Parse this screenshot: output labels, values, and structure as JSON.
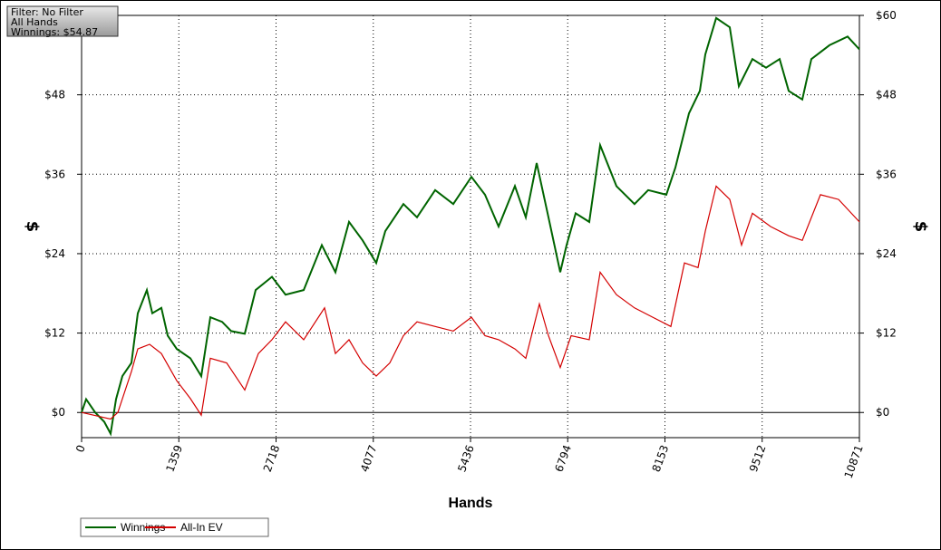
{
  "filter_box": {
    "lines": [
      "Filter: No Filter",
      "All Hands",
      "Winnings: $54.87"
    ]
  },
  "chart_data": {
    "type": "line",
    "x_label": "Hands",
    "y_label": "$",
    "y2_label": "$",
    "xlim": [
      0,
      10871
    ],
    "xticks": [
      0,
      1359,
      2718,
      4077,
      5436,
      6794,
      8153,
      9512,
      10871
    ],
    "ylim": [
      -3.8,
      60
    ],
    "yticks": [
      {
        "value": 0,
        "label": "$0"
      },
      {
        "value": 12,
        "label": "$12"
      },
      {
        "value": 24,
        "label": "$24"
      },
      {
        "value": 36,
        "label": "$36"
      },
      {
        "value": 48,
        "label": "$48"
      },
      {
        "value": 60,
        "label": "$60"
      }
    ],
    "y2lim": [
      -3.8,
      60
    ],
    "y2ticks": [
      {
        "value": 0,
        "label": "$0"
      },
      {
        "value": 12,
        "label": "$12"
      },
      {
        "value": 24,
        "label": "$24"
      },
      {
        "value": 36,
        "label": "$36"
      },
      {
        "value": 48,
        "label": "$48"
      },
      {
        "value": 60,
        "label": "$60"
      }
    ],
    "grid": true,
    "legend": "bottom-left",
    "series": [
      {
        "name": "Winnings",
        "color": "#006400",
        "x": [
          0,
          63,
          190,
          317,
          405,
          481,
          570,
          697,
          786,
          912,
          988,
          1115,
          1204,
          1330,
          1520,
          1672,
          1799,
          1964,
          2091,
          2281,
          2433,
          2661,
          2851,
          3104,
          3358,
          3548,
          3738,
          3928,
          4118,
          4244,
          4498,
          4688,
          4941,
          5195,
          5448,
          5638,
          5828,
          6056,
          6208,
          6360,
          6525,
          6690,
          6778,
          6905,
          7095,
          7247,
          7475,
          7728,
          7919,
          8172,
          8299,
          8489,
          8641,
          8717,
          8869,
          9059,
          9186,
          9376,
          9566,
          9756,
          9883,
          10073,
          10199,
          10453,
          10706,
          10871
        ],
        "values": [
          0,
          2,
          0,
          -1.4,
          -3.2,
          2,
          5.5,
          7.5,
          15,
          18.5,
          15,
          15.8,
          11.6,
          9.6,
          8.2,
          5.5,
          14.4,
          13.7,
          12.3,
          11.9,
          18.5,
          20.5,
          17.8,
          18.5,
          25.3,
          21.2,
          28.8,
          26,
          22.6,
          27.4,
          31.5,
          29.5,
          33.6,
          31.5,
          35.6,
          32.9,
          28.1,
          34.2,
          29.5,
          37.7,
          29.5,
          21.2,
          25.3,
          30.1,
          28.8,
          40.4,
          34.2,
          31.5,
          33.6,
          32.9,
          37,
          45.2,
          48.6,
          54.1,
          59.6,
          58.2,
          49.3,
          53.4,
          52.1,
          53.4,
          48.6,
          47.3,
          53.4,
          55.5,
          56.8,
          54.87
        ]
      },
      {
        "name": "All-In EV",
        "color": "#d40000",
        "x": [
          0,
          405,
          507,
          697,
          786,
          950,
          1115,
          1330,
          1520,
          1672,
          1799,
          2027,
          2281,
          2471,
          2661,
          2851,
          3104,
          3396,
          3548,
          3738,
          3928,
          4118,
          4308,
          4498,
          4688,
          4941,
          5195,
          5448,
          5638,
          5828,
          6056,
          6208,
          6398,
          6525,
          6690,
          6842,
          7095,
          7247,
          7475,
          7728,
          7982,
          8236,
          8426,
          8616,
          8717,
          8869,
          9059,
          9224,
          9376,
          9629,
          9883,
          10073,
          10326,
          10580,
          10871
        ],
        "values": [
          0,
          -1,
          0,
          6.2,
          9.6,
          10.3,
          8.9,
          4.8,
          2.1,
          -0.4,
          8.2,
          7.5,
          3.4,
          8.9,
          11,
          13.7,
          11,
          15.8,
          8.9,
          11,
          7.5,
          5.5,
          7.5,
          11.6,
          13.7,
          13,
          12.3,
          14.4,
          11.6,
          11,
          9.6,
          8.2,
          16.4,
          11.6,
          6.8,
          11.6,
          11,
          21.2,
          17.8,
          15.8,
          14.4,
          13,
          22.6,
          21.9,
          27.4,
          34.2,
          32.2,
          25.3,
          30.1,
          28.1,
          26.7,
          26,
          32.9,
          32.2,
          28.8
        ]
      }
    ]
  }
}
